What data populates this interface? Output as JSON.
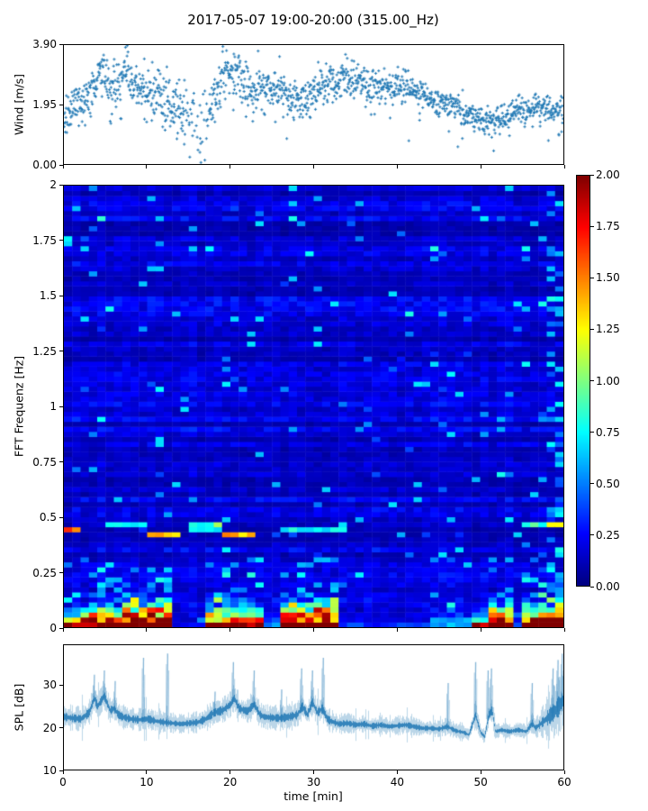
{
  "title": "2017-05-07 19:00-20:00 (315.00_Hz)",
  "colors": {
    "series_blue": "#1f77b4",
    "axis": "#000000",
    "background": "#ffffff"
  },
  "chart_data": [
    {
      "id": "wind",
      "type": "scatter",
      "marker": "+",
      "color": "#1f77b4",
      "ylabel": "Wind [m/s]",
      "ytick_labels": [
        "0.00",
        "1.95",
        "3.90"
      ],
      "ytick_values": [
        0,
        1.95,
        3.9
      ],
      "ylim": [
        0,
        3.9
      ],
      "xlim": [
        0,
        60
      ],
      "xtick_values": [
        0,
        10,
        20,
        30,
        40,
        50,
        60
      ],
      "n_points": 1500,
      "mean_envelope": [
        [
          0,
          1.55
        ],
        [
          1,
          1.8
        ],
        [
          2,
          2.0
        ],
        [
          3,
          2.3
        ],
        [
          4,
          2.85
        ],
        [
          4.6,
          3.1
        ],
        [
          5.3,
          2.6
        ],
        [
          6,
          2.5
        ],
        [
          6.8,
          2.9
        ],
        [
          7.5,
          3.05
        ],
        [
          8.5,
          2.6
        ],
        [
          9.5,
          2.35
        ],
        [
          10.5,
          2.3
        ],
        [
          11.5,
          2.2
        ],
        [
          12.5,
          2.0
        ],
        [
          13.5,
          1.95
        ],
        [
          14.5,
          1.55
        ],
        [
          15.5,
          1.1
        ],
        [
          16.3,
          0.95
        ],
        [
          17,
          1.5
        ],
        [
          18,
          2.2
        ],
        [
          19,
          2.7
        ],
        [
          20,
          2.95
        ],
        [
          21,
          3.0
        ],
        [
          21.8,
          2.6
        ],
        [
          22.5,
          2.45
        ],
        [
          23.5,
          2.4
        ],
        [
          24.5,
          2.45
        ],
        [
          25.5,
          2.5
        ],
        [
          26.5,
          2.4
        ],
        [
          27.5,
          2.25
        ],
        [
          28.5,
          2.1
        ],
        [
          29.5,
          2.3
        ],
        [
          30.5,
          2.4
        ],
        [
          31.5,
          2.55
        ],
        [
          32.5,
          2.7
        ],
        [
          33.5,
          2.85
        ],
        [
          34.5,
          2.75
        ],
        [
          35.5,
          2.65
        ],
        [
          36.5,
          2.6
        ],
        [
          38,
          2.55
        ],
        [
          39.5,
          2.5
        ],
        [
          41,
          2.45
        ],
        [
          42.5,
          2.35
        ],
        [
          44,
          2.15
        ],
        [
          45.5,
          2.0
        ],
        [
          47,
          1.9
        ],
        [
          48,
          1.7
        ],
        [
          49,
          1.55
        ],
        [
          50,
          1.45
        ],
        [
          51.5,
          1.4
        ],
        [
          53,
          1.55
        ],
        [
          54.5,
          1.7
        ],
        [
          56,
          1.8
        ],
        [
          57.5,
          1.85
        ],
        [
          58.5,
          1.75
        ],
        [
          59.5,
          1.65
        ],
        [
          60,
          1.6
        ]
      ],
      "spread_envelope": [
        [
          0,
          0.35
        ],
        [
          10,
          0.35
        ],
        [
          13,
          0.5
        ],
        [
          15,
          0.7
        ],
        [
          17,
          0.7
        ],
        [
          18,
          0.5
        ],
        [
          20,
          0.45
        ],
        [
          23,
          0.4
        ],
        [
          30,
          0.35
        ],
        [
          40,
          0.3
        ],
        [
          44,
          0.25
        ],
        [
          50,
          0.22
        ],
        [
          56,
          0.25
        ],
        [
          60,
          0.3
        ]
      ],
      "sparse_window": [
        14.5,
        17.5
      ]
    },
    {
      "id": "spectrogram",
      "type": "heatmap",
      "ylabel": "FFT Frequenz [Hz]",
      "ytick_labels": [
        "0",
        "0.25",
        "0.5",
        "0.75",
        "1",
        "1.25",
        "1.5",
        "1.75",
        "2"
      ],
      "ytick_values": [
        0,
        0.25,
        0.5,
        0.75,
        1,
        1.25,
        1.5,
        1.75,
        2
      ],
      "ylim": [
        0,
        2
      ],
      "xlim": [
        0,
        60
      ],
      "xtick_values": [
        0,
        10,
        20,
        30,
        40,
        50,
        60
      ],
      "colormap": "jet",
      "clim": [
        0,
        2
      ],
      "colorbar_tick_labels": [
        "0.00",
        "0.25",
        "0.50",
        "0.75",
        "1.00",
        "1.25",
        "1.50",
        "1.75",
        "2.00"
      ],
      "colorbar_tick_values": [
        0,
        0.25,
        0.5,
        0.75,
        1,
        1.25,
        1.5,
        1.75,
        2
      ],
      "grid_cols": 60,
      "grid_rows": 88,
      "background_value_range": [
        0.05,
        0.3
      ],
      "activity_windows": [
        [
          0,
          2.5,
          0.7,
          0.1
        ],
        [
          2.5,
          7,
          0.85,
          0.12
        ],
        [
          7,
          13.5,
          1.0,
          0.15
        ],
        [
          13.5,
          17,
          0.12,
          0.04
        ],
        [
          17,
          24,
          0.8,
          0.13
        ],
        [
          24,
          26,
          0.3,
          0.07
        ],
        [
          26,
          33.5,
          0.95,
          0.13
        ],
        [
          33.5,
          44,
          0.18,
          0.05
        ],
        [
          44,
          49.5,
          0.35,
          0.08
        ],
        [
          49.5,
          51,
          0.5,
          0.1
        ],
        [
          51,
          54.3,
          1.0,
          0.12
        ],
        [
          54.3,
          55.3,
          0.2,
          0.05
        ],
        [
          55.3,
          60,
          0.9,
          0.13
        ]
      ],
      "streaks": [
        [
          0,
          2.4,
          0.445,
          1.5
        ],
        [
          5.5,
          9.8,
          0.47,
          0.8
        ],
        [
          9.8,
          14,
          0.425,
          1.3
        ],
        [
          15.5,
          19,
          0.455,
          0.8
        ],
        [
          19,
          23.5,
          0.43,
          1.35
        ],
        [
          26,
          30,
          0.44,
          0.75
        ],
        [
          30.5,
          34.5,
          0.445,
          0.7
        ],
        [
          55,
          58.5,
          0.46,
          0.85
        ],
        [
          58.5,
          60,
          0.475,
          1.15
        ]
      ],
      "dash_probability": 0.035,
      "right_edge_dash_probability": 0.22
    },
    {
      "id": "spl",
      "type": "line",
      "color": "#1f77b4",
      "ylabel": "SPL [dB]",
      "xlabel": "time [min]",
      "ytick_labels": [
        "10",
        "20",
        "30"
      ],
      "ytick_values": [
        10,
        20,
        30
      ],
      "ylim": [
        10,
        39.5
      ],
      "xtick_labels": [
        "0",
        "10",
        "20",
        "30",
        "40",
        "50",
        "60"
      ],
      "xtick_values": [
        0,
        10,
        20,
        30,
        40,
        50,
        60
      ],
      "xlim": [
        0,
        60
      ],
      "baseline": [
        [
          0,
          22.5
        ],
        [
          1,
          22.2
        ],
        [
          2,
          22
        ],
        [
          3,
          23.5
        ],
        [
          3.6,
          27
        ],
        [
          4,
          25
        ],
        [
          4.8,
          27.5
        ],
        [
          5.5,
          24
        ],
        [
          6,
          24.5
        ],
        [
          6.5,
          23
        ],
        [
          7,
          22.5
        ],
        [
          8,
          22
        ],
        [
          9,
          21.8
        ],
        [
          10,
          22
        ],
        [
          11,
          21.5
        ],
        [
          12,
          21.2
        ],
        [
          13,
          21
        ],
        [
          14,
          20.8
        ],
        [
          15,
          21
        ],
        [
          16,
          21.2
        ],
        [
          17,
          22
        ],
        [
          18,
          23.5
        ],
        [
          19,
          24
        ],
        [
          20,
          25.5
        ],
        [
          20.4,
          27
        ],
        [
          21,
          24.5
        ],
        [
          22,
          23.8
        ],
        [
          22.8,
          25.5
        ],
        [
          23.5,
          23
        ],
        [
          24,
          22.5
        ],
        [
          25,
          22.3
        ],
        [
          26,
          22.2
        ],
        [
          27,
          22.5
        ],
        [
          28,
          23
        ],
        [
          28.6,
          25
        ],
        [
          29.2,
          23
        ],
        [
          29.8,
          26
        ],
        [
          30.4,
          23.5
        ],
        [
          31,
          24.5
        ],
        [
          31.6,
          22
        ],
        [
          32,
          21.5
        ],
        [
          33,
          20.8
        ],
        [
          34,
          21
        ],
        [
          35,
          20.6
        ],
        [
          36,
          20.8
        ],
        [
          37,
          20.3
        ],
        [
          38,
          20.6
        ],
        [
          39,
          20.2
        ],
        [
          40,
          20.4
        ],
        [
          41,
          20.6
        ],
        [
          42,
          20.2
        ],
        [
          43,
          19.8
        ],
        [
          44,
          19.8
        ],
        [
          45,
          19.6
        ],
        [
          46,
          20.2
        ],
        [
          47,
          19.2
        ],
        [
          48,
          18.8
        ],
        [
          48.6,
          18.2
        ],
        [
          49.4,
          23
        ],
        [
          50,
          18.8
        ],
        [
          50.5,
          17.8
        ],
        [
          51,
          23
        ],
        [
          51.4,
          24
        ],
        [
          51.8,
          19
        ],
        [
          52.5,
          19.4
        ],
        [
          53.5,
          19
        ],
        [
          54.5,
          19.4
        ],
        [
          55.5,
          19
        ],
        [
          56.2,
          21
        ],
        [
          56.6,
          19.8
        ],
        [
          57,
          20.5
        ],
        [
          57.6,
          21.5
        ],
        [
          58.2,
          22.5
        ],
        [
          59,
          24
        ],
        [
          59.6,
          25.5
        ],
        [
          60,
          26.5
        ]
      ],
      "noise_band": 2.0,
      "noise_multiplier": [
        [
          0,
          1
        ],
        [
          56,
          1
        ],
        [
          57,
          1.3
        ],
        [
          58,
          1.8
        ],
        [
          59,
          2.3
        ],
        [
          60,
          2.6
        ]
      ],
      "spikes": [
        [
          3.6,
          32.5
        ],
        [
          4.8,
          33.5
        ],
        [
          6.1,
          31
        ],
        [
          9.5,
          36.5
        ],
        [
          12.4,
          37.5
        ],
        [
          18.1,
          28.5
        ],
        [
          20.3,
          35.5
        ],
        [
          22.8,
          33.5
        ],
        [
          26.1,
          29
        ],
        [
          28.5,
          34
        ],
        [
          29.8,
          33.5
        ],
        [
          31.1,
          36.5
        ],
        [
          46.1,
          30.5
        ],
        [
          49.4,
          35.5
        ],
        [
          50.9,
          33.5
        ],
        [
          51.3,
          34
        ],
        [
          56.2,
          30.5
        ],
        [
          58.7,
          34
        ],
        [
          59.3,
          36
        ],
        [
          59.8,
          37.5
        ]
      ]
    }
  ]
}
